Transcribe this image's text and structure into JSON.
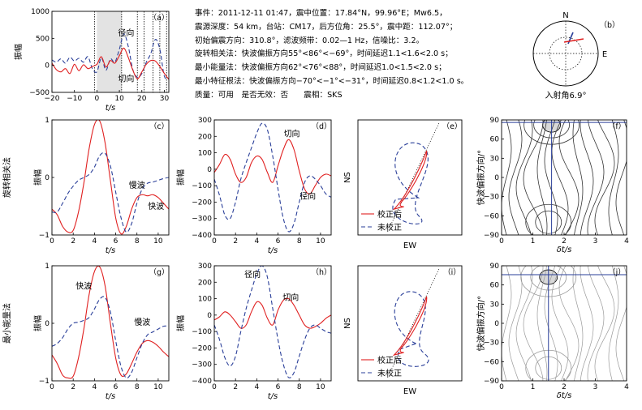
{
  "info": {
    "line1": "事件：2011-12-11 01:47，震中位置：17.84°N，99.96°E；Mw6.5，",
    "line2": "震源深度：54 km，台站：CM17，后方位角：25.5°，震中距：112.07°；",
    "line3": "初始偏震方向：310.8°，滤波频带：0.02—1 Hz，信噪比：3.2。",
    "line4": "旋转相关法：快波偏振方向55°<86°<−69°，时间延迟1.1<1.6<2.0 s；",
    "line5": "最小能量法：快波偏振方向62°<76°<88°，时间延迟1.0<1.5<2.0 s；",
    "line6": "最小特征根法：快波偏振方向−70°<−1°<−31°，时间延迟0.8<1.2<1.0 s。",
    "line7": "质量：可用　是否无效：否　　震相：SKS"
  },
  "row_labels": {
    "rc": "旋转相关法",
    "em": "最小能量法"
  },
  "chart_data": [
    {
      "panel": "a",
      "type": "line",
      "tag": "（a）",
      "ylabel": "振幅",
      "xlabel": "t/s",
      "xlim": [
        -20,
        32
      ],
      "ylim": [
        -500,
        1000
      ],
      "xticks": [
        -20,
        -10,
        0,
        10,
        20,
        30
      ],
      "yticks": [
        -500,
        0,
        500,
        1000
      ],
      "shade": [
        0,
        11
      ],
      "dotted_lines": [
        -1,
        11,
        18,
        21,
        25,
        28,
        31
      ],
      "labels": [
        {
          "text": "径向",
          "x": 13,
          "y": 550
        },
        {
          "text": "切向",
          "x": 13,
          "y": -300
        }
      ],
      "series": [
        {
          "name": "径向",
          "color": "#2a3f99",
          "dash": true,
          "x": [
            -20,
            -18,
            -16,
            -14,
            -12,
            -10,
            -8,
            -6,
            -4,
            -2,
            0,
            2,
            4,
            6,
            8,
            10,
            12,
            14,
            16,
            18,
            20,
            22,
            24,
            26,
            28,
            30,
            32
          ],
          "y": [
            100,
            60,
            120,
            40,
            150,
            80,
            130,
            60,
            160,
            -60,
            -120,
            140,
            -90,
            120,
            60,
            300,
            580,
            340,
            -80,
            -220,
            -150,
            60,
            220,
            480,
            300,
            -200,
            -250
          ]
        },
        {
          "name": "切向",
          "color": "#e02020",
          "dash": false,
          "x": [
            -20,
            -18,
            -16,
            -14,
            -12,
            -10,
            -8,
            -6,
            -4,
            -2,
            0,
            2,
            4,
            6,
            8,
            10,
            12,
            14,
            16,
            18,
            20,
            22,
            24,
            26,
            28,
            30,
            32
          ],
          "y": [
            40,
            -80,
            -120,
            -60,
            -150,
            20,
            -100,
            10,
            -60,
            -20,
            20,
            160,
            -30,
            90,
            40,
            180,
            320,
            140,
            -90,
            -250,
            -120,
            20,
            90,
            80,
            -20,
            -150,
            -260
          ]
        }
      ]
    },
    {
      "panel": "c",
      "type": "line",
      "tag": "（c）",
      "ylabel": "振幅",
      "xlabel": "t/s",
      "xlim": [
        0,
        11
      ],
      "ylim": [
        -1,
        1
      ],
      "xticks": [
        0,
        2,
        4,
        6,
        8,
        10
      ],
      "yticks": [
        -1,
        0,
        1
      ],
      "labels": [
        {
          "text": "慢波",
          "x": 8.0,
          "y": -0.18
        },
        {
          "text": "快波",
          "x": 9.8,
          "y": -0.55
        }
      ],
      "series": [
        {
          "name": "快波",
          "color": "#e02020",
          "dash": false,
          "x": [
            0,
            0.5,
            1,
            1.5,
            2,
            2.5,
            3,
            3.5,
            4,
            4.5,
            5,
            5.5,
            6,
            6.5,
            7,
            7.5,
            8,
            8.5,
            9,
            9.5,
            10,
            10.5,
            11
          ],
          "y": [
            -0.55,
            -0.65,
            -0.85,
            -0.95,
            -0.92,
            -0.6,
            -0.1,
            0.5,
            0.92,
            0.98,
            0.6,
            -0.05,
            -0.7,
            -0.98,
            -0.85,
            -0.55,
            -0.35,
            -0.3,
            -0.32,
            -0.3,
            -0.35,
            -0.45,
            -0.55
          ]
        },
        {
          "name": "慢波",
          "color": "#2a3f99",
          "dash": true,
          "x": [
            0,
            0.5,
            1,
            1.5,
            2,
            2.5,
            3,
            3.5,
            4,
            4.5,
            5,
            5.5,
            6,
            6.5,
            7,
            7.5,
            8,
            8.5,
            9,
            9.5,
            10,
            10.5,
            11
          ],
          "y": [
            -0.6,
            -0.6,
            -0.45,
            -0.28,
            -0.15,
            -0.05,
            0.0,
            0.05,
            0.18,
            0.38,
            0.42,
            0.2,
            -0.25,
            -0.7,
            -0.95,
            -0.8,
            -0.45,
            -0.2,
            -0.1,
            -0.08,
            -0.05,
            -0.02,
            0.0
          ]
        }
      ]
    },
    {
      "panel": "d",
      "type": "line",
      "tag": "（d）",
      "ylabel": "振幅",
      "xlabel": "t/s",
      "xlim": [
        0,
        11
      ],
      "ylim": [
        -400,
        300
      ],
      "xticks": [
        0,
        2,
        4,
        6,
        8,
        10
      ],
      "yticks": [
        -400,
        -300,
        -200,
        -100,
        0,
        100,
        200,
        300
      ],
      "labels": [
        {
          "text": "切向",
          "x": 7.3,
          "y": 200
        },
        {
          "text": "径向",
          "x": 8.8,
          "y": -180
        }
      ],
      "series": [
        {
          "name": "切向",
          "color": "#e02020",
          "dash": false,
          "x": [
            0,
            0.5,
            1,
            1.5,
            2,
            2.5,
            3,
            3.5,
            4,
            4.5,
            5,
            5.5,
            6,
            6.5,
            7,
            7.5,
            8,
            8.5,
            9,
            9.5,
            10,
            10.5,
            11
          ],
          "y": [
            -20,
            30,
            90,
            60,
            -30,
            -80,
            -50,
            40,
            80,
            60,
            -20,
            -80,
            20,
            120,
            180,
            120,
            -10,
            -120,
            -150,
            -100,
            -50,
            -30,
            -40
          ]
        },
        {
          "name": "径向",
          "color": "#2a3f99",
          "dash": true,
          "x": [
            0,
            0.5,
            1,
            1.5,
            2,
            2.5,
            3,
            3.5,
            4,
            4.5,
            5,
            5.5,
            6,
            6.5,
            7,
            7.5,
            8,
            8.5,
            9,
            9.5,
            10,
            10.5,
            11
          ],
          "y": [
            -60,
            -160,
            -280,
            -300,
            -200,
            -60,
            40,
            130,
            220,
            280,
            240,
            80,
            -120,
            -300,
            -380,
            -330,
            -200,
            -80,
            -40,
            -60,
            -100,
            -150,
            -170
          ]
        }
      ]
    },
    {
      "panel": "e",
      "type": "scatter",
      "tag": "（e）",
      "xlabel": "EW",
      "ylabel": "NS",
      "legend": [
        "校正后",
        "未校正"
      ]
    },
    {
      "panel": "f",
      "type": "heatmap",
      "tag": "（f）",
      "xlabel": "δt/s",
      "ylabel": "快波偏振方向/°",
      "xlim": [
        0,
        4
      ],
      "ylim": [
        -90,
        90
      ],
      "xticks": [
        0,
        1,
        2,
        3,
        4
      ],
      "yticks": [
        -90,
        -60,
        -30,
        0,
        30,
        60,
        90
      ],
      "best": {
        "dt": 1.6,
        "phi": 86
      }
    },
    {
      "panel": "g",
      "type": "line",
      "tag": "（g）",
      "ylabel": "振幅",
      "xlabel": "t/s",
      "xlim": [
        0,
        11
      ],
      "ylim": [
        -1,
        1
      ],
      "xticks": [
        0,
        2,
        4,
        6,
        8,
        10
      ],
      "yticks": [
        -1,
        0,
        1
      ],
      "labels": [
        {
          "text": "快波",
          "x": 3.0,
          "y": 0.6
        },
        {
          "text": "慢波",
          "x": 8.5,
          "y": -0.03
        }
      ],
      "series": [
        {
          "name": "快波",
          "color": "#e02020",
          "dash": false,
          "x": [
            0,
            0.5,
            1,
            1.5,
            2,
            2.5,
            3,
            3.5,
            4,
            4.5,
            5,
            5.5,
            6,
            6.5,
            7,
            7.5,
            8,
            8.5,
            9,
            9.5,
            10,
            10.5,
            11
          ],
          "y": [
            -0.55,
            -0.7,
            -0.9,
            -0.95,
            -0.92,
            -0.6,
            -0.1,
            0.5,
            0.9,
            0.98,
            0.65,
            0.0,
            -0.6,
            -0.9,
            -0.88,
            -0.7,
            -0.5,
            -0.35,
            -0.3,
            -0.33,
            -0.4,
            -0.5,
            -0.58
          ]
        },
        {
          "name": "慢波",
          "color": "#2a3f99",
          "dash": true,
          "x": [
            0,
            0.5,
            1,
            1.5,
            2,
            2.5,
            3,
            3.5,
            4,
            4.5,
            5,
            5.5,
            6,
            6.5,
            7,
            7.5,
            8,
            8.5,
            9,
            9.5,
            10,
            10.5,
            11
          ],
          "y": [
            -0.4,
            -0.35,
            -0.25,
            -0.1,
            0.0,
            0.02,
            0.05,
            0.1,
            0.25,
            0.42,
            0.45,
            0.2,
            -0.3,
            -0.75,
            -0.95,
            -0.85,
            -0.6,
            -0.35,
            -0.2,
            -0.15,
            -0.1,
            -0.05,
            -0.05
          ]
        }
      ]
    },
    {
      "panel": "h",
      "type": "line",
      "tag": "（h）",
      "ylabel": "振幅",
      "xlabel": "t/s",
      "xlim": [
        0,
        11
      ],
      "ylim": [
        -400,
        300
      ],
      "xticks": [
        0,
        2,
        4,
        6,
        8,
        10
      ],
      "yticks": [
        -400,
        -300,
        -200,
        -100,
        0,
        100,
        200,
        300
      ],
      "labels": [
        {
          "text": "径向",
          "x": 3.6,
          "y": 230
        },
        {
          "text": "切向",
          "x": 7.2,
          "y": 90
        }
      ],
      "series": [
        {
          "name": "切向",
          "color": "#e02020",
          "dash": false,
          "x": [
            0,
            0.5,
            1,
            1.5,
            2,
            2.5,
            3,
            3.5,
            4,
            4.5,
            5,
            5.5,
            6,
            6.5,
            7,
            7.5,
            8,
            8.5,
            9,
            9.5,
            10,
            10.5,
            11
          ],
          "y": [
            -30,
            -10,
            20,
            0,
            -40,
            -80,
            -60,
            20,
            80,
            60,
            -20,
            -60,
            30,
            90,
            100,
            60,
            0,
            -60,
            -80,
            -70,
            -50,
            -20,
            0
          ]
        },
        {
          "name": "径向",
          "color": "#2a3f99",
          "dash": true,
          "x": [
            0,
            0.5,
            1,
            1.5,
            2,
            2.5,
            3,
            3.5,
            4,
            4.5,
            5,
            5.5,
            6,
            6.5,
            7,
            7.5,
            8,
            8.5,
            9,
            9.5,
            10,
            10.5,
            11
          ],
          "y": [
            -60,
            -150,
            -260,
            -310,
            -250,
            -100,
            40,
            150,
            250,
            300,
            230,
            40,
            -150,
            -300,
            -380,
            -350,
            -250,
            -150,
            -80,
            -60,
            -80,
            -100,
            -110
          ]
        }
      ]
    },
    {
      "panel": "i",
      "type": "scatter",
      "tag": "（i）",
      "xlabel": "EW",
      "ylabel": "NS",
      "legend": [
        "校正后",
        "未校正"
      ]
    },
    {
      "panel": "j",
      "type": "heatmap",
      "tag": "（j）",
      "xlabel": "δt/s",
      "ylabel": "快波偏振方向/°",
      "xlim": [
        0,
        4
      ],
      "ylim": [
        -90,
        90
      ],
      "xticks": [
        0,
        1,
        2,
        3,
        4
      ],
      "yticks": [
        -90,
        -60,
        -30,
        0,
        30,
        60,
        90
      ],
      "best": {
        "dt": 1.5,
        "phi": 76
      }
    },
    {
      "panel": "b",
      "type": "pie",
      "tag": "（b）",
      "north": "N",
      "east": "E",
      "caption": "入射角6.9°"
    }
  ]
}
